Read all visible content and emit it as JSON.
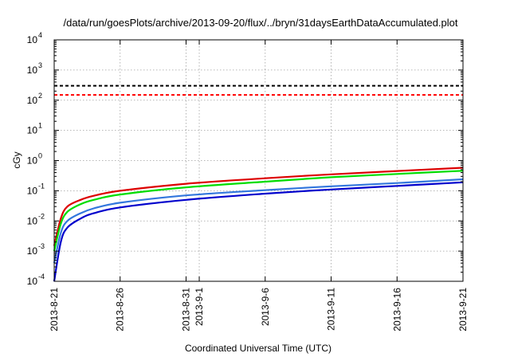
{
  "chart_data": {
    "type": "line",
    "title": "/data/run/goesPlots/archive/2013-09-20/flux/../bryn/31daysEarthDataAccumulated.plot",
    "xlabel": "Coordinated Universal Time (UTC)",
    "ylabel": "cGy",
    "y_scale": "log",
    "ylim": [
      0.0001,
      10000
    ],
    "xlim": [
      "2013-08-21",
      "2013-09-21"
    ],
    "grid": true,
    "x_ticks": [
      {
        "label": "2013-8-21",
        "date": "2013-08-21"
      },
      {
        "label": "2013-8-26",
        "date": "2013-08-26"
      },
      {
        "label": "2013-8-31",
        "date": "2013-08-31"
      },
      {
        "label": "2013-9-1",
        "date": "2013-09-01"
      },
      {
        "label": "2013-9-6",
        "date": "2013-09-06"
      },
      {
        "label": "2013-9-11",
        "date": "2013-09-11"
      },
      {
        "label": "2013-9-16",
        "date": "2013-09-16"
      },
      {
        "label": "2013-9-21",
        "date": "2013-09-21"
      }
    ],
    "y_ticks": [
      {
        "base": "10",
        "exp": "-4",
        "value": 0.0001
      },
      {
        "base": "10",
        "exp": "-3",
        "value": 0.001
      },
      {
        "base": "10",
        "exp": "-2",
        "value": 0.01
      },
      {
        "base": "10",
        "exp": "-1",
        "value": 0.1
      },
      {
        "base": "10",
        "exp": "0",
        "value": 1
      },
      {
        "base": "10",
        "exp": "1",
        "value": 10
      },
      {
        "base": "10",
        "exp": "2",
        "value": 100
      },
      {
        "base": "10",
        "exp": "3",
        "value": 1000
      },
      {
        "base": "10",
        "exp": "4",
        "value": 10000
      }
    ],
    "reference_lines": [
      {
        "y": 300,
        "color": "#000000",
        "style": "dashed"
      },
      {
        "y": 150,
        "color": "#ff0000",
        "style": "dashed"
      }
    ],
    "series": [
      {
        "color": "#dd0000",
        "x": [
          "2013-08-21",
          "2013-08-21T12:00",
          "2013-08-22",
          "2013-08-23",
          "2013-08-24",
          "2013-08-26",
          "2013-08-31",
          "2013-09-06",
          "2013-09-11",
          "2013-09-16",
          "2013-09-21"
        ],
        "y": [
          0.0015,
          0.012,
          0.03,
          0.05,
          0.068,
          0.1,
          0.17,
          0.26,
          0.35,
          0.45,
          0.58
        ]
      },
      {
        "color": "#00dd00",
        "x": [
          "2013-08-21",
          "2013-08-21T12:00",
          "2013-08-22",
          "2013-08-23",
          "2013-08-24",
          "2013-08-26",
          "2013-08-31",
          "2013-09-06",
          "2013-09-11",
          "2013-09-16",
          "2013-09-21"
        ],
        "y": [
          0.001,
          0.008,
          0.02,
          0.036,
          0.05,
          0.075,
          0.13,
          0.2,
          0.28,
          0.36,
          0.46
        ]
      },
      {
        "color": "#3377dd",
        "x": [
          "2013-08-21",
          "2013-08-21T12:00",
          "2013-08-22",
          "2013-08-23",
          "2013-08-24",
          "2013-08-26",
          "2013-08-31",
          "2013-09-06",
          "2013-09-11",
          "2013-09-16",
          "2013-09-21"
        ],
        "y": [
          0.0004,
          0.004,
          0.01,
          0.018,
          0.026,
          0.04,
          0.07,
          0.105,
          0.14,
          0.18,
          0.24
        ]
      },
      {
        "color": "#0000cc",
        "x": [
          "2013-08-21",
          "2013-08-21T12:00",
          "2013-08-22",
          "2013-08-23",
          "2013-08-24",
          "2013-08-26",
          "2013-08-31",
          "2013-09-06",
          "2013-09-11",
          "2013-09-16",
          "2013-09-21"
        ],
        "y": [
          0.0001,
          0.002,
          0.006,
          0.012,
          0.018,
          0.028,
          0.05,
          0.08,
          0.11,
          0.145,
          0.19
        ]
      }
    ]
  }
}
